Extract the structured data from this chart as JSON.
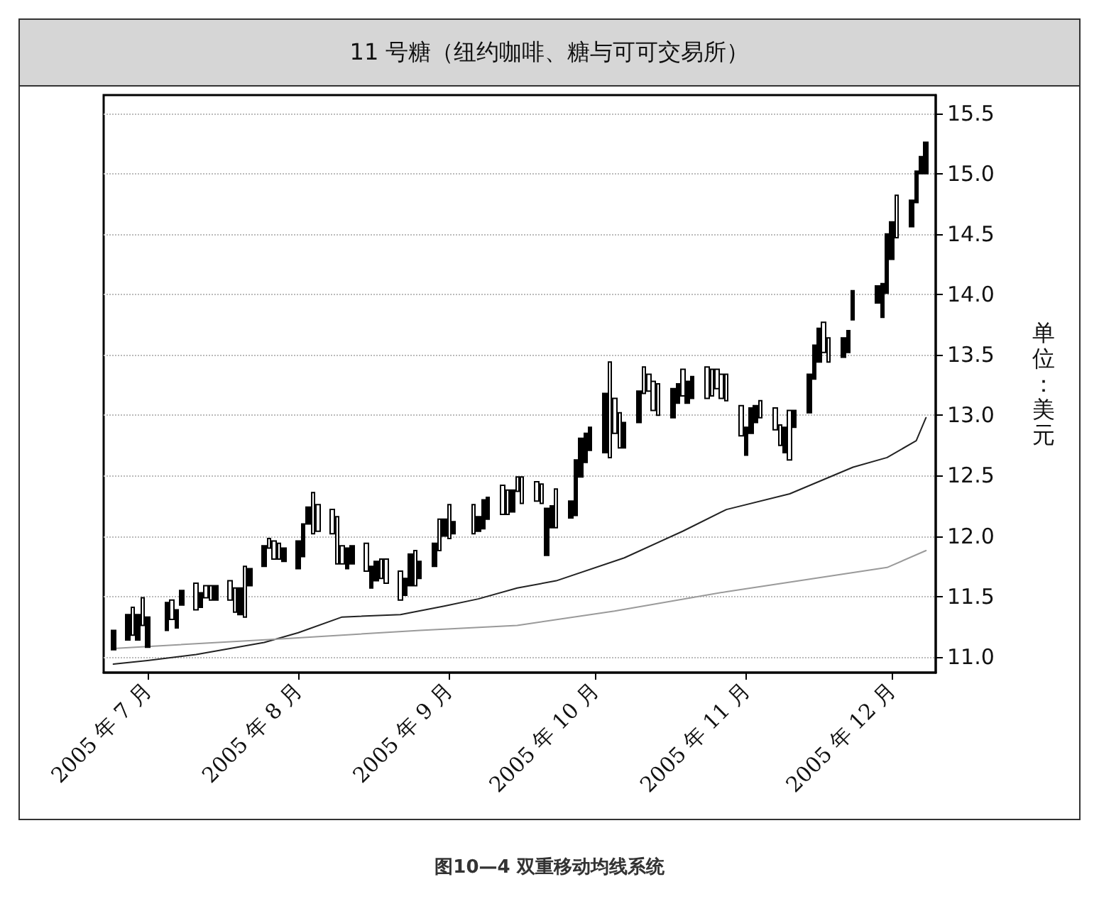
{
  "chart_data": {
    "type": "candlestick",
    "title": "11 号糖（纽约咖啡、糖与可可交易所）",
    "ylabel": "单位：美元",
    "annotations": [
      "图10—4 双重移动均线系统"
    ],
    "color": "#000000",
    "x": [
      "2005-06-24",
      "2005-06-27",
      "2005-06-28",
      "2005-06-29",
      "2005-06-30",
      "2005-07-01",
      "2005-07-05",
      "2005-07-06",
      "2005-07-07",
      "2005-07-08",
      "2005-07-11",
      "2005-07-12",
      "2005-07-13",
      "2005-07-14",
      "2005-07-15",
      "2005-07-18",
      "2005-07-19",
      "2005-07-20",
      "2005-07-21",
      "2005-07-22",
      "2005-07-25",
      "2005-07-26",
      "2005-07-27",
      "2005-07-28",
      "2005-07-29",
      "2005-08-01",
      "2005-08-02",
      "2005-08-03",
      "2005-08-04",
      "2005-08-05",
      "2005-08-08",
      "2005-08-09",
      "2005-08-10",
      "2005-08-11",
      "2005-08-12",
      "2005-08-15",
      "2005-08-16",
      "2005-08-17",
      "2005-08-18",
      "2005-08-19",
      "2005-08-22",
      "2005-08-23",
      "2005-08-24",
      "2005-08-25",
      "2005-08-26",
      "2005-08-29",
      "2005-08-30",
      "2005-08-31",
      "2005-09-01",
      "2005-09-02",
      "2005-09-06",
      "2005-09-07",
      "2005-09-08",
      "2005-09-09",
      "2005-09-12",
      "2005-09-13",
      "2005-09-14",
      "2005-09-15",
      "2005-09-16",
      "2005-09-19",
      "2005-09-20",
      "2005-09-21",
      "2005-09-22",
      "2005-09-23",
      "2005-09-26",
      "2005-09-27",
      "2005-09-28",
      "2005-09-29",
      "2005-09-30",
      "2005-10-03",
      "2005-10-04",
      "2005-10-05",
      "2005-10-06",
      "2005-10-07",
      "2005-10-10",
      "2005-10-11",
      "2005-10-12",
      "2005-10-13",
      "2005-10-14",
      "2005-10-17",
      "2005-10-18",
      "2005-10-19",
      "2005-10-20",
      "2005-10-21",
      "2005-10-24",
      "2005-10-25",
      "2005-10-26",
      "2005-10-27",
      "2005-10-28",
      "2005-10-31",
      "2005-11-01",
      "2005-11-02",
      "2005-11-03",
      "2005-11-04",
      "2005-11-07",
      "2005-11-08",
      "2005-11-09",
      "2005-11-10",
      "2005-11-11",
      "2005-11-14",
      "2005-11-15",
      "2005-11-16",
      "2005-11-17",
      "2005-11-18",
      "2005-11-21",
      "2005-11-22",
      "2005-11-23",
      "2005-11-28",
      "2005-11-29",
      "2005-11-30",
      "2005-12-01",
      "2005-12-02",
      "2005-12-05",
      "2005-12-06",
      "2005-12-07",
      "2005-12-08"
    ],
    "ohlc": [
      [
        11.06,
        11.22,
        11.06,
        11.22
      ],
      [
        11.14,
        11.35,
        11.14,
        11.35
      ],
      [
        11.41,
        11.41,
        11.18,
        11.18
      ],
      [
        11.14,
        11.35,
        11.14,
        11.35
      ],
      [
        11.49,
        11.49,
        11.26,
        11.26
      ],
      [
        11.08,
        11.33,
        11.08,
        11.33
      ],
      [
        11.22,
        11.45,
        11.22,
        11.45
      ],
      [
        11.47,
        11.47,
        11.31,
        11.31
      ],
      [
        11.24,
        11.39,
        11.24,
        11.39
      ],
      [
        11.43,
        11.55,
        11.43,
        11.55
      ],
      [
        11.61,
        11.61,
        11.39,
        11.39
      ],
      [
        11.41,
        11.53,
        11.41,
        11.53
      ],
      [
        11.59,
        11.59,
        11.49,
        11.49
      ],
      [
        11.59,
        11.59,
        11.47,
        11.47
      ],
      [
        11.47,
        11.59,
        11.47,
        11.59
      ],
      [
        11.63,
        11.63,
        11.47,
        11.47
      ],
      [
        11.57,
        11.57,
        11.37,
        11.37
      ],
      [
        11.35,
        11.57,
        11.35,
        11.57
      ],
      [
        11.75,
        11.75,
        11.33,
        11.33
      ],
      [
        11.59,
        11.73,
        11.59,
        11.73
      ],
      [
        11.75,
        11.92,
        11.75,
        11.92
      ],
      [
        11.98,
        11.98,
        11.9,
        11.9
      ],
      [
        11.96,
        11.96,
        11.81,
        11.81
      ],
      [
        11.94,
        11.94,
        11.81,
        11.81
      ],
      [
        11.79,
        11.9,
        11.79,
        11.9
      ],
      [
        11.73,
        11.96,
        11.73,
        11.96
      ],
      [
        11.83,
        12.1,
        11.83,
        12.1
      ],
      [
        12.1,
        12.24,
        12.1,
        12.24
      ],
      [
        12.36,
        12.36,
        12.02,
        12.02
      ],
      [
        12.26,
        12.26,
        12.04,
        12.04
      ],
      [
        12.22,
        12.22,
        12.02,
        12.02
      ],
      [
        12.16,
        12.16,
        11.77,
        11.77
      ],
      [
        11.92,
        11.92,
        11.77,
        11.77
      ],
      [
        11.73,
        11.9,
        11.73,
        11.9
      ],
      [
        11.77,
        11.92,
        11.77,
        11.92
      ],
      [
        11.94,
        11.94,
        11.71,
        11.71
      ],
      [
        11.57,
        11.75,
        11.57,
        11.75
      ],
      [
        11.63,
        11.79,
        11.63,
        11.79
      ],
      [
        11.81,
        11.81,
        11.65,
        11.65
      ],
      [
        11.81,
        11.81,
        11.61,
        11.61
      ],
      [
        11.71,
        11.71,
        11.47,
        11.47
      ],
      [
        11.51,
        11.65,
        11.51,
        11.65
      ],
      [
        11.59,
        11.85,
        11.59,
        11.85
      ],
      [
        11.88,
        11.88,
        11.59,
        11.59
      ],
      [
        11.65,
        11.79,
        11.65,
        11.79
      ],
      [
        11.75,
        11.94,
        11.75,
        11.94
      ],
      [
        12.14,
        12.14,
        11.88,
        11.88
      ],
      [
        12.0,
        12.14,
        12.0,
        12.14
      ],
      [
        12.26,
        12.26,
        11.98,
        11.98
      ],
      [
        12.02,
        12.12,
        12.02,
        12.12
      ],
      [
        12.26,
        12.26,
        12.02,
        12.02
      ],
      [
        12.04,
        12.16,
        12.04,
        12.16
      ],
      [
        12.06,
        12.3,
        12.06,
        12.3
      ],
      [
        12.14,
        12.32,
        12.14,
        12.32
      ],
      [
        12.42,
        12.42,
        12.18,
        12.18
      ],
      [
        12.38,
        12.38,
        12.18,
        12.18
      ],
      [
        12.2,
        12.38,
        12.2,
        12.38
      ],
      [
        12.49,
        12.49,
        12.37,
        12.37
      ],
      [
        12.49,
        12.49,
        12.27,
        12.27
      ],
      [
        12.45,
        12.45,
        12.29,
        12.29
      ],
      [
        12.43,
        12.43,
        12.27,
        12.27
      ],
      [
        11.84,
        12.23,
        11.84,
        12.23
      ],
      [
        12.07,
        12.25,
        12.07,
        12.25
      ],
      [
        12.39,
        12.39,
        12.07,
        12.07
      ],
      [
        12.15,
        12.29,
        12.15,
        12.29
      ],
      [
        12.17,
        12.63,
        12.17,
        12.63
      ],
      [
        12.49,
        12.81,
        12.49,
        12.81
      ],
      [
        12.61,
        12.85,
        12.61,
        12.85
      ],
      [
        12.71,
        12.9,
        12.71,
        12.9
      ],
      [
        12.69,
        13.18,
        12.69,
        13.18
      ],
      [
        13.44,
        13.44,
        12.65,
        12.65
      ],
      [
        13.14,
        13.14,
        12.85,
        12.85
      ],
      [
        13.02,
        13.02,
        12.73,
        12.73
      ],
      [
        12.73,
        12.94,
        12.73,
        12.94
      ],
      [
        12.94,
        13.2,
        12.94,
        13.2
      ],
      [
        13.4,
        13.4,
        13.18,
        13.18
      ],
      [
        13.34,
        13.34,
        13.2,
        13.2
      ],
      [
        13.28,
        13.28,
        13.04,
        13.04
      ],
      [
        13.26,
        13.26,
        13.0,
        13.0
      ],
      [
        12.98,
        13.22,
        12.98,
        13.22
      ],
      [
        13.1,
        13.26,
        13.1,
        13.26
      ],
      [
        13.38,
        13.38,
        13.16,
        13.16
      ],
      [
        13.1,
        13.28,
        13.1,
        13.28
      ],
      [
        13.14,
        13.32,
        13.14,
        13.32
      ],
      [
        13.4,
        13.4,
        13.14,
        13.14
      ],
      [
        13.38,
        13.38,
        13.16,
        13.16
      ],
      [
        13.38,
        13.38,
        13.22,
        13.22
      ],
      [
        13.34,
        13.34,
        13.14,
        13.14
      ],
      [
        13.34,
        13.34,
        13.12,
        13.12
      ],
      [
        13.08,
        13.08,
        12.83,
        12.83
      ],
      [
        12.67,
        12.9,
        12.67,
        12.9
      ],
      [
        12.85,
        13.06,
        12.85,
        13.06
      ],
      [
        12.94,
        13.08,
        12.94,
        13.08
      ],
      [
        13.12,
        13.12,
        12.98,
        12.98
      ],
      [
        13.06,
        13.06,
        12.88,
        12.88
      ],
      [
        12.92,
        12.92,
        12.75,
        12.75
      ],
      [
        12.69,
        12.9,
        12.69,
        12.9
      ],
      [
        13.04,
        13.04,
        12.63,
        12.63
      ],
      [
        12.9,
        13.04,
        12.9,
        13.04
      ],
      [
        13.02,
        13.34,
        13.02,
        13.34
      ],
      [
        13.3,
        13.58,
        13.3,
        13.58
      ],
      [
        13.44,
        13.72,
        13.44,
        13.72
      ],
      [
        13.77,
        13.77,
        13.52,
        13.52
      ],
      [
        13.64,
        13.64,
        13.44,
        13.44
      ],
      [
        13.48,
        13.64,
        13.48,
        13.64
      ],
      [
        13.52,
        13.7,
        13.52,
        13.7
      ],
      [
        13.79,
        14.03,
        13.79,
        14.03
      ],
      [
        13.93,
        14.07,
        13.93,
        14.07
      ],
      [
        13.81,
        14.09,
        13.81,
        14.09
      ],
      [
        14.01,
        14.5,
        14.01,
        14.5
      ],
      [
        14.29,
        14.6,
        14.29,
        14.6
      ],
      [
        14.82,
        14.82,
        14.47,
        14.47
      ],
      [
        14.56,
        14.78,
        14.56,
        14.78
      ],
      [
        14.76,
        15.02,
        14.76,
        15.02
      ],
      [
        15.0,
        15.14,
        15.0,
        15.14
      ],
      [
        15.0,
        15.26,
        15.0,
        15.26
      ]
    ],
    "series": [
      {
        "type": "line",
        "color": "#222222",
        "x": [
          "2005-06-24",
          "2005-07-01",
          "2005-07-11",
          "2005-07-25",
          "2005-08-01",
          "2005-08-10",
          "2005-08-22",
          "2005-08-31",
          "2005-09-07",
          "2005-09-15",
          "2005-09-23",
          "2005-10-07",
          "2005-10-19",
          "2005-10-28",
          "2005-11-10",
          "2005-11-23",
          "2005-11-30",
          "2005-12-06",
          "2005-12-08"
        ],
        "values": [
          10.94,
          10.97,
          11.02,
          11.12,
          11.2,
          11.33,
          11.35,
          11.42,
          11.48,
          11.57,
          11.63,
          11.82,
          12.04,
          12.22,
          12.35,
          12.57,
          12.65,
          12.79,
          12.98
        ]
      },
      {
        "type": "line",
        "color": "#9a9a9a",
        "x": [
          "2005-06-24",
          "2005-07-29",
          "2005-08-26",
          "2005-09-15",
          "2005-10-05",
          "2005-10-28",
          "2005-11-30",
          "2005-12-08"
        ],
        "values": [
          11.07,
          11.15,
          11.22,
          11.26,
          11.38,
          11.54,
          11.74,
          11.88
        ]
      }
    ],
    "xlim": [
      "2005-06-22",
      "2005-12-10"
    ],
    "xticks": [
      {
        "value": "2005-07-01",
        "label": "2005 年 7 月"
      },
      {
        "value": "2005-08-01",
        "label": "2005 年 8 月"
      },
      {
        "value": "2005-09-01",
        "label": "2005 年 9 月"
      },
      {
        "value": "2005-10-01",
        "label": "2005 年 10 月"
      },
      {
        "value": "2005-11-01",
        "label": "2005 年 11 月"
      },
      {
        "value": "2005-12-01",
        "label": "2005 年 12 月"
      }
    ],
    "ylim": [
      10.87,
      15.65
    ],
    "yticks": [
      {
        "value": 11,
        "label": "11.0"
      },
      {
        "value": 11.5,
        "label": "11.5"
      },
      {
        "value": 12,
        "label": "12.0"
      },
      {
        "value": 12.5,
        "label": "12.5"
      },
      {
        "value": 13,
        "label": "13.0"
      },
      {
        "value": 13.5,
        "label": "13.5"
      },
      {
        "value": 14,
        "label": "14.0"
      },
      {
        "value": 14.5,
        "label": "14.5"
      },
      {
        "value": 15,
        "label": "15.0"
      },
      {
        "value": 15.5,
        "label": "15.5"
      }
    ],
    "grid": "y",
    "marker": "none",
    "line_style": "solid"
  }
}
